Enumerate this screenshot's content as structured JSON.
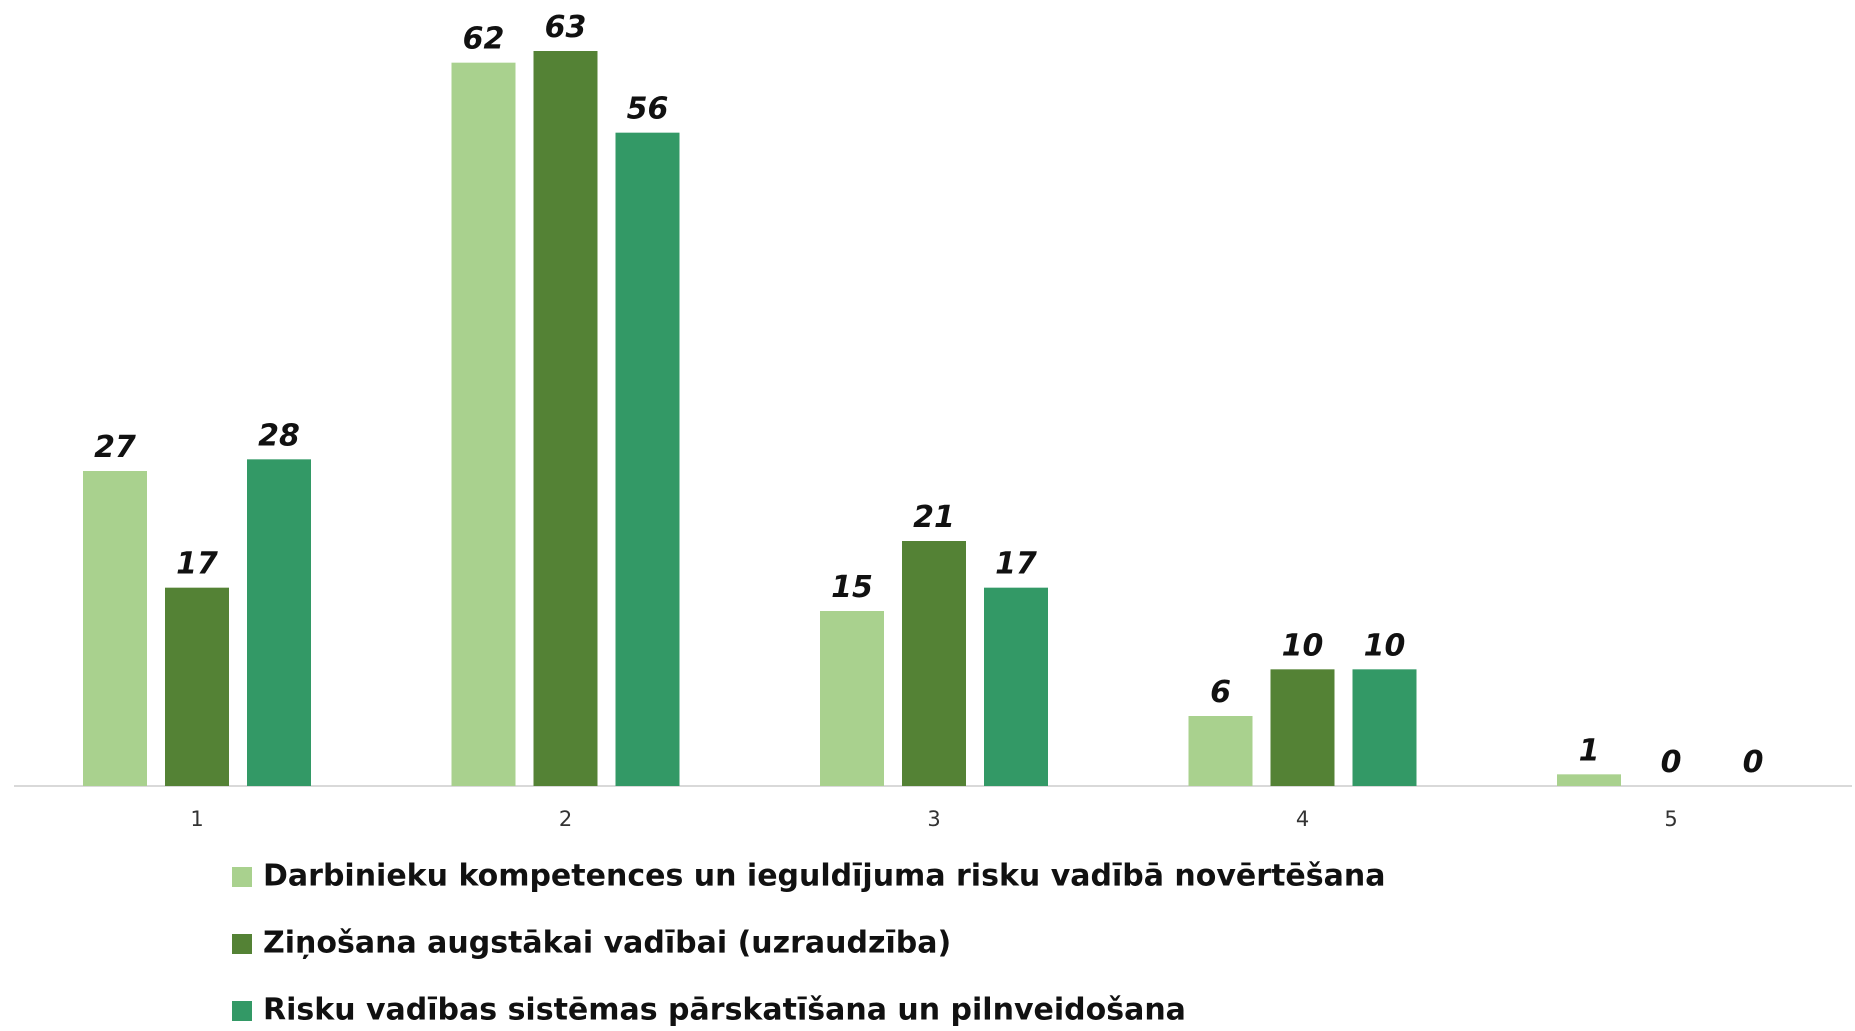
{
  "chart_data": {
    "type": "bar",
    "categories": [
      1,
      2,
      3,
      4,
      5
    ],
    "series": [
      {
        "name": "Darbinieku kompetences un ieguldījuma risku vadībā novērtēšana",
        "color": "#a9d18e",
        "values": [
          27,
          62,
          15,
          6,
          1
        ]
      },
      {
        "name": "Ziņošana augstākai vadībai (uzraudzība)",
        "color": "#548235",
        "values": [
          17,
          63,
          21,
          10,
          0
        ]
      },
      {
        "name": "Risku vadības sistēmas pārskatīšana un pilnveidošana",
        "color": "#339966",
        "values": [
          28,
          56,
          17,
          10,
          0
        ]
      }
    ],
    "grid": false,
    "legend": "bottom"
  }
}
